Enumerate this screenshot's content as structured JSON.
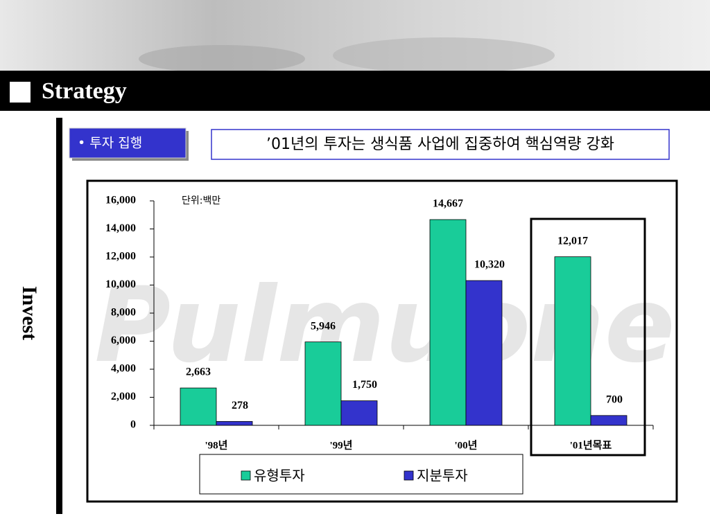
{
  "header": {
    "title": "Strategy"
  },
  "side_label": "Invest",
  "tag": "• 투자 집행",
  "headline": "’01년의 투자는 생식품 사업에 집중하여 핵심역량 강화",
  "watermark": "Pulmuone",
  "chart_data": {
    "type": "bar",
    "unit_note": "단위:백만",
    "categories": [
      "'98년",
      "'99년",
      "'00년",
      "'01년목표"
    ],
    "series": [
      {
        "name": "유형투자",
        "color": "#19cc99",
        "values": [
          2663,
          5946,
          14667,
          12017
        ],
        "value_labels": [
          "2,663",
          "5,946",
          "14,667",
          "12,017"
        ]
      },
      {
        "name": "지분투자",
        "color": "#3333cc",
        "values": [
          278,
          1750,
          10320,
          700
        ],
        "value_labels": [
          "278",
          "1,750",
          "10,320",
          "700"
        ]
      }
    ],
    "ylim": [
      0,
      16000
    ],
    "yticks": [
      0,
      {
        "value": 2000,
        "label": "2,000"
      },
      {
        "value": 4000,
        "label": "4,000"
      },
      {
        "value": 6000,
        "label": "6,000"
      },
      {
        "value": 8000,
        "label": "8,000"
      },
      {
        "value": 10000,
        "label": "10,000"
      },
      {
        "value": 12000,
        "label": "12,000"
      },
      {
        "value": 14000,
        "label": "14,000"
      },
      {
        "value": 16000,
        "label": "16,000"
      }
    ],
    "highlight_category": 3
  }
}
